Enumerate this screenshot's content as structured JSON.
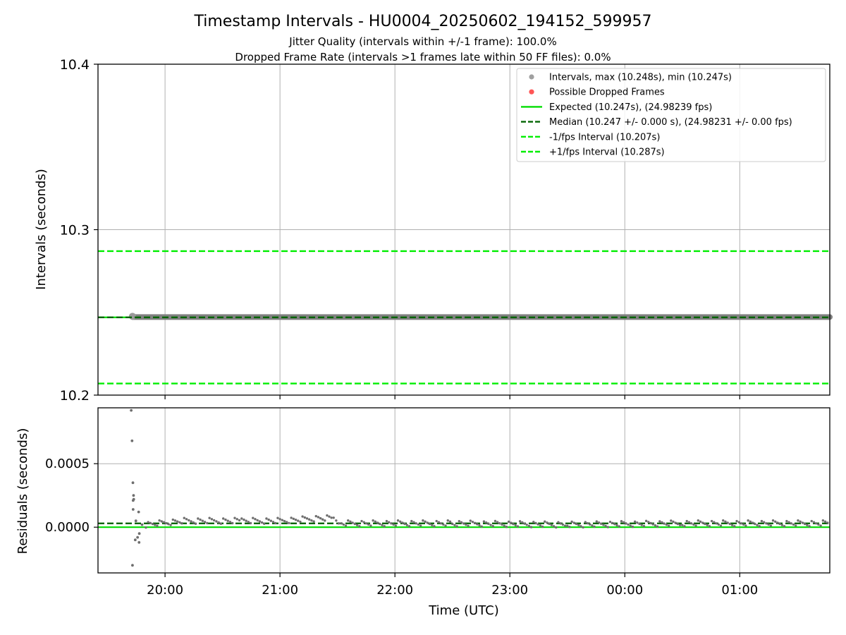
{
  "figure": {
    "title": "Timestamp Intervals - HU0004_20250602_194152_599957",
    "subtitle_1": "Jitter Quality (intervals within +/-1 frame): 100.0%",
    "subtitle_2": "Dropped Frame Rate (intervals >1 frames late within 50 FF files): 0.0%"
  },
  "colors": {
    "intervals": "#808080",
    "dropped": "#ff4444",
    "expected": "#00dd00",
    "median": "#006400",
    "fps_bounds": "#00ee00",
    "grid": "#b0b0b0",
    "residual_points": "#6e6e6e"
  },
  "chart_data": [
    {
      "type": "scatter",
      "ylabel": "Intervals (seconds)",
      "xlim": [
        "19:25",
        "01:47"
      ],
      "ylim": [
        10.2,
        10.4
      ],
      "x_ticks": [
        "20:00",
        "21:00",
        "22:00",
        "23:00",
        "00:00",
        "01:00"
      ],
      "y_ticks": [
        "10.2",
        "10.3",
        "10.4"
      ],
      "grid": true,
      "legend_position": "top-right",
      "legend": [
        {
          "label": "Intervals, max (10.248s), min (10.247s)",
          "style": "marker",
          "color": "#a0a0a0"
        },
        {
          "label": "Possible Dropped Frames",
          "style": "marker",
          "color": "#ff5555"
        },
        {
          "label": "Expected (10.247s), (24.98239 fps)",
          "style": "solid",
          "color": "#00dd00"
        },
        {
          "label": "Median (10.247 +/- 0.000 s), (24.98231 +/- 0.00 fps)",
          "style": "dashed",
          "color": "#006400"
        },
        {
          "label": "-1/fps Interval (10.207s)",
          "style": "dashed",
          "color": "#00ee00"
        },
        {
          "label": "+1/fps Interval (10.287s)",
          "style": "dashed",
          "color": "#00ee00"
        }
      ],
      "lines": {
        "expected": 10.247,
        "median": 10.247,
        "minus_1fps": 10.207,
        "plus_1fps": 10.287
      },
      "series": [
        {
          "name": "Intervals, max (10.248s), min (10.247s)",
          "x_range": [
            "19:43",
            "01:47"
          ],
          "y": 10.2472
        }
      ]
    },
    {
      "type": "scatter",
      "xlabel": "Time (UTC)",
      "ylabel": "Residuals (seconds)",
      "xlim": [
        "19:25",
        "01:47"
      ],
      "ylim": [
        -0.00036,
        0.00094
      ],
      "x_ticks": [
        "20:00",
        "21:00",
        "22:00",
        "23:00",
        "00:00",
        "01:00"
      ],
      "y_ticks": [
        "0.0000",
        "0.0005"
      ],
      "grid": true,
      "lines": {
        "expected": 0.0,
        "median": 3e-05
      },
      "series": [
        {
          "name": "",
          "x": [
            "19:43",
            "19:43",
            "19:43",
            "19:43",
            "19:44",
            "19:43",
            "19:44",
            "19:44",
            "19:45",
            "19:46",
            "19:45",
            "19:47",
            "19:48",
            "19:46",
            "19:44"
          ],
          "y": [
            0.00092,
            0.00068,
            0.00035,
            0.00022,
            0.00025,
            -0.0003,
            -0.0001,
            0.00014,
            5e-05,
            0.00012,
            -8e-05,
            -5e-05,
            2e-05,
            -0.00012,
            0.00021
          ]
        }
      ],
      "trend": [
        {
          "x": "19:50",
          "y": 2e-05
        },
        {
          "x": "20:10",
          "y": 5e-05
        },
        {
          "x": "20:40",
          "y": 5e-05
        },
        {
          "x": "21:00",
          "y": 5e-05
        },
        {
          "x": "21:20",
          "y": 7e-05
        },
        {
          "x": "21:28",
          "y": 7e-05
        },
        {
          "x": "21:32",
          "y": 3e-05
        },
        {
          "x": "22:30",
          "y": 3e-05
        },
        {
          "x": "23:30",
          "y": 2e-05
        },
        {
          "x": "00:30",
          "y": 3e-05
        },
        {
          "x": "01:47",
          "y": 3e-05
        }
      ]
    }
  ]
}
